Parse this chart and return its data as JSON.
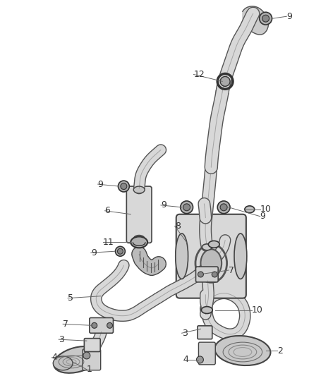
{
  "background_color": "#ffffff",
  "fig_width": 4.38,
  "fig_height": 5.33,
  "dpi": 100,
  "line_color": "#555555",
  "label_fontsize": 9,
  "label_color": "#333333",
  "pipe_lw": 1.2,
  "pipe_color": "#666666",
  "pipe_fill": "#e8e8e8",
  "part_edge": "#444444",
  "part_fill": "#d0d0d0"
}
